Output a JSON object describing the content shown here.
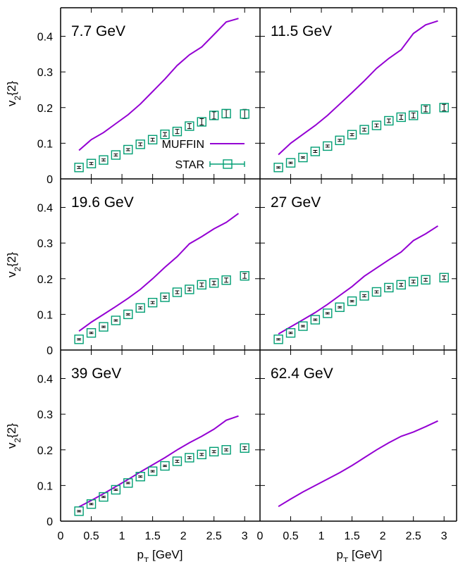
{
  "figure": {
    "ylabel_main": "v",
    "ylabel_sub": "2",
    "ylabel_tail": "{2}",
    "xlabel_main": "p",
    "xlabel_sub": "T",
    "xlabel_tail": " [GeV]",
    "legend": {
      "muffin": "MUFFIN",
      "star": "STAR"
    },
    "colors": {
      "muffin": "#9400d3",
      "star": "#009e73"
    }
  },
  "chart_data": [
    {
      "type": "line",
      "title": "7.7 GeV",
      "xlim": [
        0,
        3.25
      ],
      "ylim": [
        0,
        0.48
      ],
      "xticks": [
        "0",
        "0.5",
        "1",
        "1.5",
        "2",
        "2.5",
        "3"
      ],
      "yticks": [
        "0",
        "0.1",
        "0.2",
        "0.3",
        "0.4"
      ],
      "legend_position": "center-right",
      "series": [
        {
          "name": "MUFFIN",
          "x": [
            0.3,
            0.5,
            0.7,
            0.9,
            1.1,
            1.3,
            1.5,
            1.7,
            1.9,
            2.1,
            2.3,
            2.5,
            2.7,
            2.9
          ],
          "y": [
            0.08,
            0.11,
            0.13,
            0.155,
            0.18,
            0.21,
            0.245,
            0.28,
            0.318,
            0.348,
            0.37,
            0.405,
            0.44,
            0.45
          ]
        },
        {
          "name": "STAR",
          "x": [
            0.3,
            0.5,
            0.7,
            0.9,
            1.1,
            1.3,
            1.5,
            1.7,
            1.9,
            2.1,
            2.3,
            2.5,
            2.7,
            3.0
          ],
          "y": [
            0.032,
            0.043,
            0.053,
            0.067,
            0.082,
            0.097,
            0.11,
            0.125,
            0.133,
            0.148,
            0.16,
            0.178,
            0.183,
            0.182
          ],
          "err": [
            0.003,
            0.003,
            0.003,
            0.003,
            0.003,
            0.004,
            0.004,
            0.005,
            0.006,
            0.007,
            0.009,
            0.01,
            0.011,
            0.013
          ]
        }
      ]
    },
    {
      "type": "line",
      "title": "11.5 GeV",
      "xlim": [
        0,
        3.25
      ],
      "ylim": [
        0,
        0.48
      ],
      "series": [
        {
          "name": "MUFFIN",
          "x": [
            0.3,
            0.5,
            0.7,
            0.9,
            1.1,
            1.3,
            1.5,
            1.7,
            1.9,
            2.1,
            2.3,
            2.5,
            2.7,
            2.9
          ],
          "y": [
            0.068,
            0.1,
            0.125,
            0.15,
            0.178,
            0.21,
            0.242,
            0.275,
            0.31,
            0.338,
            0.362,
            0.408,
            0.432,
            0.443
          ]
        },
        {
          "name": "STAR",
          "x": [
            0.3,
            0.5,
            0.7,
            0.9,
            1.1,
            1.3,
            1.5,
            1.7,
            1.9,
            2.1,
            2.3,
            2.5,
            2.7,
            3.0
          ],
          "y": [
            0.032,
            0.045,
            0.06,
            0.077,
            0.092,
            0.108,
            0.124,
            0.138,
            0.15,
            0.163,
            0.173,
            0.178,
            0.196,
            0.2
          ],
          "err": [
            0.002,
            0.002,
            0.002,
            0.003,
            0.003,
            0.003,
            0.003,
            0.004,
            0.004,
            0.005,
            0.006,
            0.007,
            0.008,
            0.009
          ]
        }
      ]
    },
    {
      "type": "line",
      "title": "19.6 GeV",
      "xlim": [
        0,
        3.25
      ],
      "ylim": [
        0,
        0.48
      ],
      "series": [
        {
          "name": "MUFFIN",
          "x": [
            0.3,
            0.5,
            0.7,
            0.9,
            1.1,
            1.3,
            1.5,
            1.7,
            1.9,
            2.1,
            2.3,
            2.5,
            2.7,
            2.9
          ],
          "y": [
            0.053,
            0.078,
            0.1,
            0.122,
            0.145,
            0.17,
            0.2,
            0.232,
            0.262,
            0.298,
            0.318,
            0.34,
            0.358,
            0.383
          ]
        },
        {
          "name": "STAR",
          "x": [
            0.3,
            0.5,
            0.7,
            0.9,
            1.1,
            1.3,
            1.5,
            1.7,
            1.9,
            2.1,
            2.3,
            2.5,
            2.7,
            3.0
          ],
          "y": [
            0.03,
            0.048,
            0.065,
            0.083,
            0.1,
            0.118,
            0.133,
            0.148,
            0.162,
            0.17,
            0.183,
            0.188,
            0.196,
            0.208
          ],
          "err": [
            0.002,
            0.002,
            0.002,
            0.002,
            0.002,
            0.003,
            0.003,
            0.003,
            0.004,
            0.004,
            0.005,
            0.005,
            0.006,
            0.007
          ]
        }
      ]
    },
    {
      "type": "line",
      "title": "27 GeV",
      "xlim": [
        0,
        3.25
      ],
      "ylim": [
        0,
        0.48
      ],
      "series": [
        {
          "name": "MUFFIN",
          "x": [
            0.3,
            0.5,
            0.7,
            0.9,
            1.1,
            1.3,
            1.5,
            1.7,
            1.9,
            2.1,
            2.3,
            2.5,
            2.7,
            2.9
          ],
          "y": [
            0.045,
            0.065,
            0.085,
            0.105,
            0.128,
            0.153,
            0.178,
            0.207,
            0.23,
            0.253,
            0.275,
            0.307,
            0.326,
            0.348
          ]
        },
        {
          "name": "STAR",
          "x": [
            0.3,
            0.5,
            0.7,
            0.9,
            1.1,
            1.3,
            1.5,
            1.7,
            1.9,
            2.1,
            2.3,
            2.5,
            2.7,
            3.0
          ],
          "y": [
            0.03,
            0.048,
            0.067,
            0.085,
            0.103,
            0.12,
            0.137,
            0.152,
            0.163,
            0.175,
            0.183,
            0.192,
            0.197,
            0.203
          ],
          "err": [
            0.002,
            0.002,
            0.002,
            0.002,
            0.002,
            0.002,
            0.002,
            0.003,
            0.003,
            0.003,
            0.004,
            0.004,
            0.004,
            0.005
          ]
        }
      ]
    },
    {
      "type": "line",
      "title": "39 GeV",
      "xlim": [
        0,
        3.25
      ],
      "ylim": [
        0,
        0.48
      ],
      "series": [
        {
          "name": "MUFFIN",
          "x": [
            0.3,
            0.5,
            0.7,
            0.9,
            1.1,
            1.3,
            1.5,
            1.7,
            1.9,
            2.1,
            2.3,
            2.5,
            2.7,
            2.9
          ],
          "y": [
            0.04,
            0.058,
            0.077,
            0.097,
            0.117,
            0.138,
            0.158,
            0.178,
            0.2,
            0.22,
            0.238,
            0.258,
            0.283,
            0.295
          ]
        },
        {
          "name": "STAR",
          "x": [
            0.3,
            0.5,
            0.7,
            0.9,
            1.1,
            1.3,
            1.5,
            1.7,
            1.9,
            2.1,
            2.3,
            2.5,
            2.7,
            3.0
          ],
          "y": [
            0.028,
            0.048,
            0.068,
            0.088,
            0.107,
            0.125,
            0.14,
            0.155,
            0.168,
            0.178,
            0.187,
            0.195,
            0.2,
            0.205
          ],
          "err": [
            0.002,
            0.002,
            0.002,
            0.002,
            0.002,
            0.002,
            0.002,
            0.002,
            0.003,
            0.003,
            0.003,
            0.003,
            0.003,
            0.004
          ]
        }
      ]
    },
    {
      "type": "line",
      "title": "62.4 GeV",
      "xlim": [
        0,
        3.25
      ],
      "ylim": [
        0,
        0.48
      ],
      "series": [
        {
          "name": "MUFFIN",
          "x": [
            0.3,
            0.5,
            0.7,
            0.9,
            1.1,
            1.3,
            1.5,
            1.7,
            1.9,
            2.1,
            2.3,
            2.5,
            2.7,
            2.9
          ],
          "y": [
            0.041,
            0.062,
            0.082,
            0.1,
            0.118,
            0.136,
            0.156,
            0.178,
            0.2,
            0.22,
            0.238,
            0.25,
            0.265,
            0.281
          ]
        }
      ]
    }
  ]
}
